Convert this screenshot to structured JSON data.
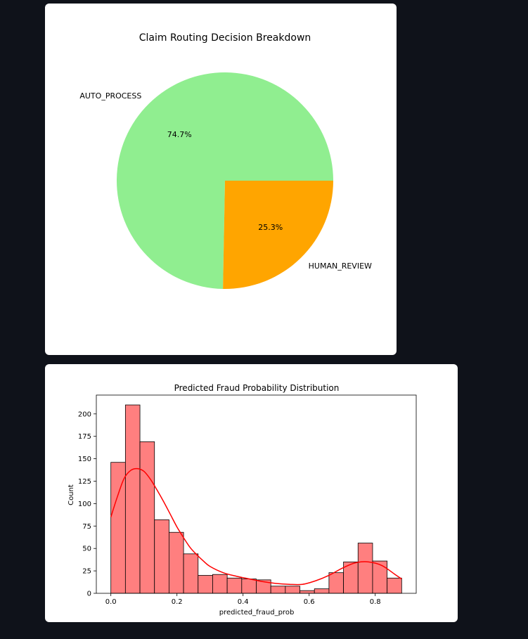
{
  "charts": {
    "pie": {
      "title": "Claim Routing Decision Breakdown",
      "slices": [
        {
          "label": "AUTO_PROCESS",
          "value": 74.7,
          "pct_label": "74.7%",
          "color": "#90ee90"
        },
        {
          "label": "HUMAN_REVIEW",
          "value": 25.3,
          "pct_label": "25.3%",
          "color": "#ffa500"
        }
      ]
    },
    "histogram": {
      "title": "Predicted Fraud Probability Distribution",
      "xlabel": "predicted_fraud_prob",
      "ylabel": "Count"
    }
  },
  "chart_data": [
    {
      "type": "pie",
      "title": "Claim Routing Decision Breakdown",
      "categories": [
        "AUTO_PROCESS",
        "HUMAN_REVIEW"
      ],
      "values": [
        74.7,
        25.3
      ],
      "labels": [
        "74.7%",
        "25.3%"
      ],
      "colors": [
        "#90ee90",
        "#ffa500"
      ]
    },
    {
      "type": "bar",
      "subtype": "histogram",
      "title": "Predicted Fraud Probability Distribution",
      "xlabel": "predicted_fraud_prob",
      "ylabel": "Count",
      "bin_edges": [
        0.0,
        0.044,
        0.088,
        0.132,
        0.176,
        0.22,
        0.264,
        0.308,
        0.352,
        0.396,
        0.44,
        0.484,
        0.528,
        0.572,
        0.616,
        0.66,
        0.704,
        0.748,
        0.792,
        0.836,
        0.88
      ],
      "values": [
        146,
        210,
        169,
        82,
        68,
        44,
        20,
        21,
        17,
        16,
        15,
        8,
        8,
        3,
        5,
        23,
        35,
        56,
        36,
        17
      ],
      "kde": {
        "x": [
          0.0,
          0.02,
          0.04,
          0.06,
          0.08,
          0.1,
          0.12,
          0.14,
          0.16,
          0.18,
          0.2,
          0.22,
          0.24,
          0.26,
          0.28,
          0.3,
          0.34,
          0.38,
          0.42,
          0.46,
          0.5,
          0.54,
          0.58,
          0.62,
          0.66,
          0.7,
          0.74,
          0.78,
          0.82,
          0.86,
          0.88
        ],
        "y": [
          85,
          108,
          128,
          137,
          139,
          136,
          127,
          115,
          102,
          88,
          74,
          62,
          51,
          43,
          36,
          30,
          23,
          19,
          16,
          13,
          11,
          10,
          10,
          14,
          20,
          28,
          34,
          35,
          31,
          21,
          16
        ]
      },
      "color": "#ff7f7f",
      "kde_color": "#ff0000",
      "xlim": [
        -0.044,
        0.924
      ],
      "ylim": [
        0,
        221
      ],
      "xticks": [
        0.0,
        0.2,
        0.4,
        0.6,
        0.8
      ],
      "xtick_labels": [
        "0.0",
        "0.2",
        "0.4",
        "0.6",
        "0.8"
      ],
      "yticks": [
        0,
        25,
        50,
        75,
        100,
        125,
        150,
        175,
        200
      ],
      "ytick_labels": [
        "0",
        "25",
        "50",
        "75",
        "100",
        "125",
        "150",
        "175",
        "200"
      ],
      "grid": false,
      "legend": "none"
    }
  ]
}
